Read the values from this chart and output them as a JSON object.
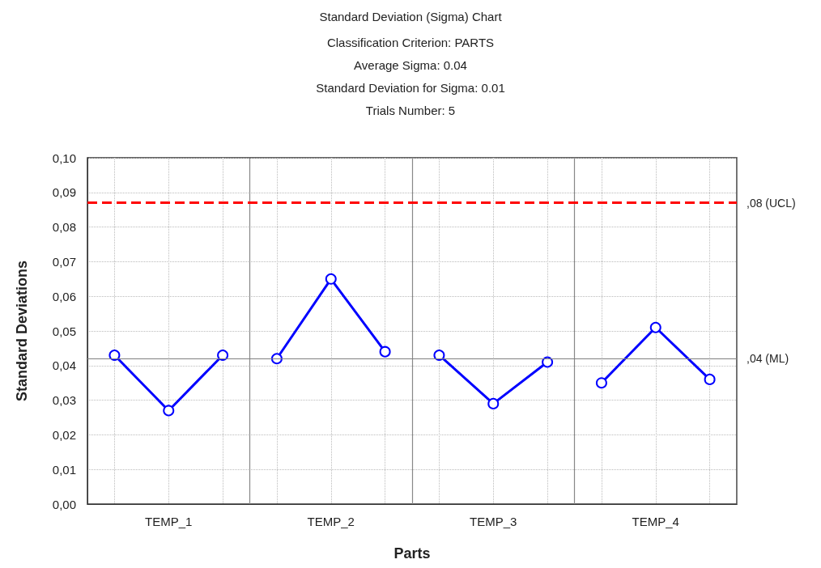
{
  "chart_data": {
    "type": "line",
    "title": "Standard Deviation (Sigma) Chart",
    "subtitle": "Classification Criterion: PARTS\nAverage Sigma: 0.04\nStandard Deviation for Sigma: 0.01\nTrials Number: 5",
    "xlabel": "Parts",
    "ylabel": "Standard Deviations",
    "categories": [
      null,
      "TEMP_1",
      null,
      null,
      "TEMP_2",
      null,
      null,
      "TEMP_3",
      null,
      null,
      "TEMP_4",
      null
    ],
    "series": [
      {
        "color": "#0000ff",
        "values": [
          0.043,
          0.027,
          0.043,
          null,
          null,
          null,
          null,
          null,
          null,
          null,
          null,
          null
        ]
      },
      {
        "color": "#0000ff",
        "values": [
          null,
          null,
          null,
          0.042,
          0.065,
          0.044,
          null,
          null,
          null,
          null,
          null,
          null
        ]
      },
      {
        "color": "#0000ff",
        "values": [
          null,
          null,
          null,
          null,
          null,
          null,
          0.043,
          0.029,
          0.041,
          null,
          null,
          null
        ]
      },
      {
        "color": "#0000ff",
        "values": [
          null,
          null,
          null,
          null,
          null,
          null,
          null,
          null,
          null,
          0.035,
          0.051,
          0.036
        ]
      }
    ],
    "ylim": [
      0,
      0.1
    ],
    "yticks": [
      {
        "value": 0,
        "label": "0,00"
      },
      {
        "value": 0.01,
        "label": "0,01"
      },
      {
        "value": 0.02,
        "label": "0,02"
      },
      {
        "value": 0.03,
        "label": "0,03"
      },
      {
        "value": 0.04,
        "label": "0,04"
      },
      {
        "value": 0.05,
        "label": "0,05"
      },
      {
        "value": 0.06,
        "label": "0,06"
      },
      {
        "value": 0.07,
        "label": "0,07"
      },
      {
        "value": 0.08,
        "label": "0,08"
      },
      {
        "value": 0.09,
        "label": "0,09"
      },
      {
        "value": 0.1,
        "label": "0,10"
      }
    ],
    "ref_lines": [
      {
        "axis": "y",
        "value": 0.087,
        "label": ",08 (UCL)",
        "color": "#ff0000",
        "line_style": "dashed"
      },
      {
        "axis": "y",
        "value": 0.042,
        "label": ",04 (ML)",
        "color": "#808080",
        "line_style": "solid"
      }
    ],
    "grid": true,
    "marker": "circle",
    "line_style": "solid"
  }
}
